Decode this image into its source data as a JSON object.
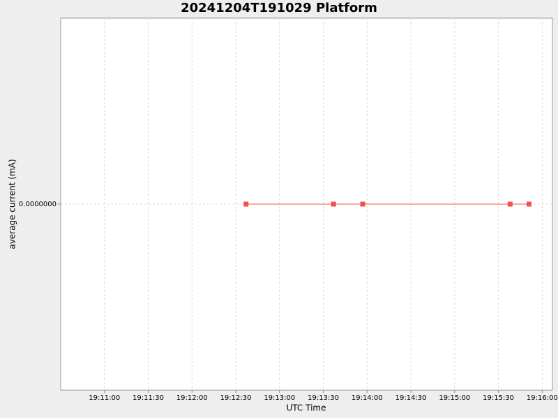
{
  "chart_data": {
    "type": "line",
    "title": "20241204T191029 Platform",
    "x_label": "UTC Time",
    "y_label": "average current (mA)",
    "x": [
      "19:12:37",
      "19:13:37",
      "19:13:57",
      "19:15:38",
      "19:15:51"
    ],
    "series": [
      {
        "name": "average current",
        "color": "#f05050",
        "values": [
          0,
          0,
          0,
          0,
          0
        ]
      }
    ],
    "xlim": [
      "19:10:30",
      "19:16:07"
    ],
    "xticks": [
      "19:11:00",
      "19:11:30",
      "19:12:00",
      "19:12:30",
      "19:13:00",
      "19:13:30",
      "19:14:00",
      "19:14:30",
      "19:15:00",
      "19:15:30",
      "19:16:00"
    ],
    "ylim": [
      -1,
      1
    ],
    "yticks": [
      {
        "value": 0,
        "label": "0.0000000"
      }
    ],
    "grid": true
  }
}
